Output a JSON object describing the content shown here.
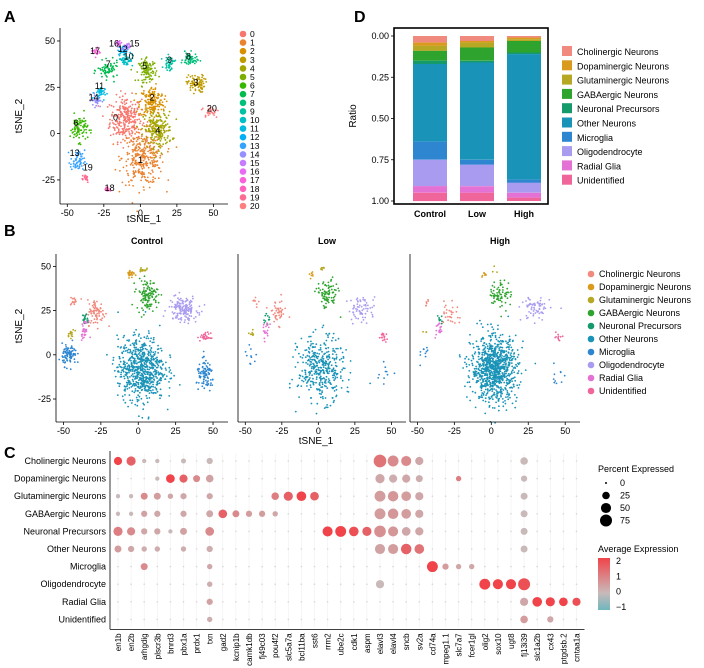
{
  "panel_a": {
    "letter": "A",
    "xlabel": "tSNE_1",
    "ylabel": "tSNE_2",
    "xticks": [
      "-50",
      "-25",
      "0",
      "25",
      "50"
    ],
    "yticks": [
      "50",
      "25",
      "0",
      "-25"
    ],
    "cluster_labels": [
      "0",
      "1",
      "2",
      "3",
      "4",
      "5",
      "6",
      "7",
      "8",
      "9",
      "10",
      "11",
      "12",
      "13",
      "14",
      "15",
      "16",
      "17",
      "18",
      "19",
      "20"
    ],
    "cluster_colors": [
      "#F8766D",
      "#EA8331",
      "#D89000",
      "#C09B00",
      "#A3A500",
      "#7CAE00",
      "#39B600",
      "#00BB4E",
      "#00BF7D",
      "#00C1A3",
      "#00BFC4",
      "#00BAE0",
      "#00B0F6",
      "#35A2FF",
      "#9590FF",
      "#C77CFF",
      "#E76BF3",
      "#FA62DB",
      "#FF62BC",
      "#FF6C91",
      "#FF7F7F"
    ]
  },
  "panel_d": {
    "letter": "D",
    "ylabel": "Ratio",
    "yticks": [
      "0.00",
      "0.25",
      "0.50",
      "0.75",
      "1.00"
    ]
  },
  "panel_b": {
    "letter": "B",
    "titles": [
      "Control",
      "Low",
      "High"
    ],
    "xlabel": "tSNE_1",
    "ylabel": "tSNE_2",
    "xticks": [
      "-50",
      "-25",
      "0",
      "25",
      "50"
    ],
    "yticks": [
      "50",
      "25",
      "0",
      "-25"
    ]
  },
  "panel_c": {
    "letter": "C",
    "legend_size_title": "Percent Expressed",
    "legend_size_values": [
      "0",
      "25",
      "50",
      "75"
    ],
    "legend_color_title": "Average Expression",
    "legend_color_values": [
      "2",
      "1",
      "0",
      "−1"
    ]
  },
  "cell_types": [
    "Cholinergic Neurons",
    "Dopaminergic Neurons",
    "Glutaminergic Neurons",
    "GABAergic Neurons",
    "Neuronal Precursors",
    "Other Neurons",
    "Microglia",
    "Oligodendrocyte",
    "Radial Glia",
    "Unidentified"
  ],
  "cell_type_colors": [
    "#F08A7E",
    "#D99A1D",
    "#B6A824",
    "#2EA42E",
    "#159A6B",
    "#1993B7",
    "#2E86D1",
    "#A99CF0",
    "#E472D4",
    "#F0659A"
  ],
  "chart_data": [
    {
      "type": "stacked_bar",
      "categories": [
        "Control",
        "Low",
        "High"
      ],
      "ylabel": "Ratio",
      "ylim": [
        0,
        1
      ],
      "legend": [
        "Cholinergic Neurons",
        "Dopaminergic Neurons",
        "Glutaminergic Neurons",
        "GABAergic Neurons",
        "Neuronal Precursors",
        "Other Neurons",
        "Microglia",
        "Oligodendrocyte",
        "Radial Glia",
        "Unidentified"
      ],
      "series": [
        {
          "name": "Cholinergic Neurons",
          "values": [
            0.04,
            0.03,
            0.01
          ]
        },
        {
          "name": "Dopaminergic Neurons",
          "values": [
            0.02,
            0.01,
            0.01
          ]
        },
        {
          "name": "Glutaminergic Neurons",
          "values": [
            0.03,
            0.03,
            0.01
          ]
        },
        {
          "name": "GABAergic Neurons",
          "values": [
            0.06,
            0.08,
            0.07
          ]
        },
        {
          "name": "Neuronal Precursors",
          "values": [
            0.02,
            0.01,
            0.01
          ]
        },
        {
          "name": "Other Neurons",
          "values": [
            0.47,
            0.59,
            0.76
          ]
        },
        {
          "name": "Microglia",
          "values": [
            0.11,
            0.03,
            0.02
          ]
        },
        {
          "name": "Oligodendrocyte",
          "values": [
            0.16,
            0.13,
            0.06
          ]
        },
        {
          "name": "Radial Glia",
          "values": [
            0.04,
            0.04,
            0.03
          ]
        },
        {
          "name": "Unidentified",
          "values": [
            0.05,
            0.05,
            0.02
          ]
        }
      ]
    },
    {
      "type": "dotplot",
      "genes": [
        "en1b",
        "en2b",
        "arhgdig",
        "plscr3b",
        "bnrd3",
        "pbx1a",
        "prdx1",
        "txn",
        "gad2",
        "kcnip1b",
        "camk1db",
        "fj49c03",
        "pou4f2",
        "slc5a7a",
        "bcl11ba",
        "sst6",
        "rrm2",
        "ube2c",
        "cdk1",
        "aspm",
        "elavl3",
        "elavl4",
        "sncb",
        "sv2a",
        "cd74a",
        "mpeg1.1",
        "slc7a7",
        "fcer1gl",
        "olig2",
        "sox10",
        "ugt8",
        "fj13i39",
        "slc1a2b",
        "cx43",
        "ptgdsb.2",
        "cntaa1a"
      ],
      "cell_types": [
        "Cholinergic Neurons",
        "Dopaminergic Neurons",
        "Glutaminergic Neurons",
        "GABAergic Neurons",
        "Neuronal Precursors",
        "Other Neurons",
        "Microglia",
        "Oligodendrocyte",
        "Radial Glia",
        "Unidentified"
      ],
      "size_legend": [
        0,
        25,
        50,
        75
      ],
      "color_legend": [
        -1,
        0,
        1,
        2
      ],
      "expression": [
        [
          2.0,
          1.5,
          0,
          0,
          0,
          0,
          0,
          0,
          0,
          0,
          0,
          0,
          0,
          0,
          0,
          0,
          0,
          0,
          0,
          0,
          1.2,
          0.8,
          0.8,
          0.3,
          0,
          0,
          0,
          0,
          0,
          0,
          0,
          0,
          0,
          0,
          0,
          0
        ],
        [
          0,
          0,
          0,
          0,
          2.0,
          1.5,
          0.8,
          0.4,
          0,
          0,
          0,
          0,
          0,
          0,
          0,
          0,
          0,
          0,
          0,
          0,
          0.3,
          0.2,
          0.3,
          0.2,
          0,
          0,
          1.0,
          0,
          0,
          0,
          0,
          0,
          0,
          0,
          0,
          0
        ],
        [
          0,
          0,
          0.8,
          0.5,
          0.3,
          0.3,
          0,
          0.3,
          0,
          0,
          0,
          0,
          1.0,
          1.5,
          2.0,
          1.5,
          0,
          0,
          0,
          0,
          0.5,
          0.6,
          0.5,
          0.3,
          0,
          0,
          0,
          0,
          0,
          0,
          0,
          0,
          0,
          0,
          0,
          0
        ],
        [
          0,
          0,
          0.4,
          0.3,
          0,
          0.3,
          0,
          0.3,
          1.5,
          0.8,
          0.5,
          0.5,
          0.3,
          0,
          0,
          0,
          0,
          0,
          0,
          0,
          0.5,
          0.6,
          0.5,
          0.3,
          0,
          0,
          0,
          0,
          0,
          0,
          0,
          0,
          0,
          0,
          0,
          0
        ],
        [
          1.0,
          0.8,
          0.3,
          0.3,
          0,
          0.4,
          0,
          0.8,
          0,
          0,
          0,
          0,
          0,
          0,
          0,
          0,
          2.0,
          2.0,
          1.8,
          1.5,
          0.7,
          0.6,
          0.3,
          0.3,
          0,
          0,
          0,
          0,
          0,
          0,
          0,
          0,
          0,
          0,
          0,
          0
        ],
        [
          0.5,
          0.3,
          0.2,
          0.2,
          0,
          0.2,
          0,
          0.2,
          0,
          0,
          0,
          0,
          0,
          0,
          0,
          0,
          0,
          0,
          0,
          0,
          0.4,
          0.5,
          1.5,
          1.2,
          0,
          0,
          0,
          0,
          0,
          0,
          0,
          0,
          0,
          0,
          0,
          0
        ],
        [
          0,
          0,
          0.8,
          0,
          0,
          0,
          0,
          0.3,
          0,
          0,
          0,
          0,
          0,
          0,
          0,
          0,
          0,
          0,
          0,
          0,
          0,
          0,
          0,
          0,
          2.0,
          0.5,
          0.3,
          0.3,
          0,
          0,
          0,
          0,
          0,
          0,
          0,
          0
        ],
        [
          0,
          0,
          0,
          0,
          0,
          0,
          0,
          0.2,
          0,
          0,
          0,
          0,
          0,
          0,
          0,
          0,
          0,
          0,
          0,
          0,
          0,
          0,
          0,
          0,
          0,
          0,
          0,
          0,
          2.0,
          2.0,
          2.0,
          1.8,
          0,
          0,
          0,
          0
        ],
        [
          0,
          0,
          0,
          0,
          0,
          0,
          0,
          0.4,
          0,
          0,
          0,
          0,
          0,
          0,
          0,
          0,
          0,
          0,
          0,
          0,
          0,
          0,
          0,
          0,
          0,
          0,
          0,
          0,
          0,
          0,
          0,
          0.3,
          2.0,
          2.0,
          2.0,
          1.8
        ],
        [
          0,
          0,
          0,
          0,
          0,
          0,
          0,
          0.2,
          0,
          0,
          0,
          0,
          0,
          0,
          0,
          0,
          0,
          0,
          0,
          0,
          0,
          0,
          0,
          0,
          0,
          0,
          0,
          0,
          0,
          0,
          0,
          0.5,
          0,
          0.3,
          0,
          0
        ]
      ],
      "percent_expressed": [
        [
          30,
          40,
          5,
          5,
          0,
          8,
          0,
          15,
          0,
          0,
          0,
          0,
          0,
          0,
          0,
          0,
          0,
          0,
          0,
          0,
          85,
          60,
          50,
          30,
          0,
          0,
          0,
          0,
          0,
          0,
          0,
          25,
          0,
          0,
          0,
          0
        ],
        [
          0,
          0,
          0,
          5,
          35,
          30,
          20,
          25,
          0,
          0,
          0,
          0,
          0,
          0,
          0,
          0,
          0,
          0,
          0,
          0,
          40,
          30,
          30,
          20,
          0,
          0,
          10,
          0,
          0,
          0,
          0,
          15,
          0,
          0,
          0,
          0
        ],
        [
          5,
          5,
          20,
          20,
          10,
          15,
          0,
          15,
          0,
          0,
          0,
          0,
          25,
          40,
          45,
          35,
          0,
          0,
          0,
          0,
          60,
          55,
          45,
          30,
          0,
          0,
          0,
          0,
          0,
          0,
          0,
          20,
          0,
          0,
          0,
          0
        ],
        [
          5,
          5,
          15,
          15,
          0,
          15,
          0,
          20,
          35,
          20,
          15,
          15,
          10,
          0,
          0,
          0,
          0,
          0,
          0,
          0,
          60,
          55,
          45,
          30,
          0,
          0,
          0,
          0,
          0,
          0,
          0,
          20,
          0,
          0,
          0,
          0
        ],
        [
          40,
          30,
          15,
          15,
          5,
          20,
          0,
          35,
          0,
          0,
          0,
          0,
          0,
          0,
          0,
          0,
          50,
          60,
          45,
          40,
          70,
          50,
          35,
          30,
          0,
          0,
          0,
          0,
          0,
          0,
          0,
          20,
          0,
          0,
          0,
          0
        ],
        [
          20,
          15,
          10,
          10,
          0,
          10,
          0,
          15,
          0,
          0,
          0,
          0,
          0,
          0,
          0,
          0,
          0,
          0,
          0,
          0,
          50,
          50,
          55,
          45,
          0,
          0,
          0,
          0,
          0,
          0,
          0,
          20,
          0,
          0,
          0,
          0
        ],
        [
          0,
          0,
          20,
          0,
          0,
          0,
          0,
          10,
          0,
          0,
          0,
          0,
          0,
          0,
          0,
          0,
          0,
          0,
          0,
          0,
          0,
          0,
          0,
          0,
          60,
          15,
          10,
          10,
          0,
          0,
          0,
          0,
          0,
          0,
          0,
          0
        ],
        [
          0,
          0,
          0,
          0,
          0,
          0,
          0,
          10,
          0,
          0,
          0,
          0,
          0,
          0,
          0,
          0,
          0,
          0,
          0,
          0,
          30,
          0,
          0,
          0,
          0,
          0,
          0,
          0,
          60,
          50,
          50,
          75,
          0,
          0,
          0,
          0
        ],
        [
          0,
          0,
          0,
          0,
          0,
          0,
          0,
          15,
          0,
          0,
          0,
          0,
          0,
          0,
          0,
          0,
          0,
          0,
          0,
          0,
          0,
          0,
          0,
          0,
          0,
          0,
          0,
          0,
          0,
          0,
          0,
          30,
          45,
          40,
          35,
          30
        ],
        [
          0,
          0,
          0,
          0,
          0,
          0,
          0,
          10,
          0,
          0,
          0,
          0,
          0,
          0,
          0,
          0,
          0,
          0,
          0,
          0,
          0,
          0,
          0,
          0,
          0,
          0,
          0,
          0,
          0,
          0,
          0,
          25,
          0,
          15,
          0,
          0
        ]
      ]
    }
  ]
}
